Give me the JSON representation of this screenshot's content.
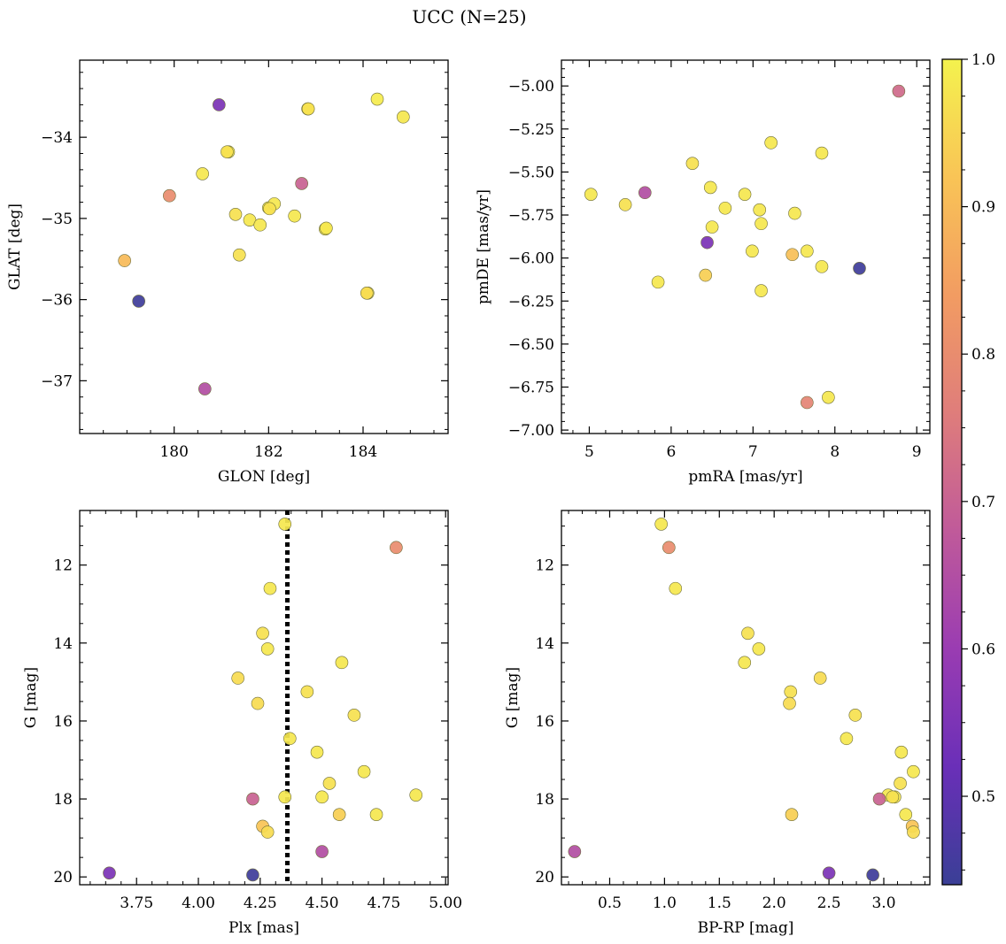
{
  "figure": {
    "title": "UCC (N=25)"
  },
  "colorbar": {
    "min": 0.44,
    "max": 1.0,
    "ticks": [
      0.5,
      0.6,
      0.7,
      0.8,
      0.9,
      1.0
    ],
    "tick_labels": [
      "0.5",
      "0.6",
      "0.7",
      "0.8",
      "0.9",
      "1.0"
    ],
    "colormap": "plasma",
    "stops": [
      "#3a3f96",
      "#6a2fb8",
      "#9a3cb2",
      "#c05a9a",
      "#df7d7b",
      "#f29c62",
      "#f9c456",
      "#f4f24e"
    ]
  },
  "chart_data": [
    {
      "type": "scatter",
      "title": "",
      "xlabel": "GLON [deg]",
      "ylabel": "GLAT [deg]",
      "xlim": [
        178.0,
        185.8
      ],
      "ylim": [
        -37.65,
        -33.05
      ],
      "invert_y": false,
      "xticks": [
        180,
        182,
        184
      ],
      "xtick_labels": [
        "180",
        "182",
        "184"
      ],
      "yticks": [
        -34,
        -35,
        -36,
        -37
      ],
      "ytick_labels": [
        "−34",
        "−35",
        "−36",
        "−37"
      ],
      "points": [
        {
          "x": 180.95,
          "y": -33.6,
          "c": 0.55
        },
        {
          "x": 184.3,
          "y": -33.53,
          "c": 0.99
        },
        {
          "x": 184.85,
          "y": -33.75,
          "c": 0.98
        },
        {
          "x": 182.83,
          "y": -33.65,
          "c": 0.99
        },
        {
          "x": 181.15,
          "y": -34.18,
          "c": 0.99
        },
        {
          "x": 180.6,
          "y": -34.45,
          "c": 0.98
        },
        {
          "x": 179.9,
          "y": -34.72,
          "c": 0.8
        },
        {
          "x": 182.7,
          "y": -34.57,
          "c": 0.7
        },
        {
          "x": 181.3,
          "y": -34.95,
          "c": 0.97
        },
        {
          "x": 181.6,
          "y": -35.02,
          "c": 0.98
        },
        {
          "x": 181.82,
          "y": -35.08,
          "c": 0.98
        },
        {
          "x": 182.0,
          "y": -34.87,
          "c": 0.99
        },
        {
          "x": 182.12,
          "y": -34.82,
          "c": 0.98
        },
        {
          "x": 182.55,
          "y": -34.97,
          "c": 0.98
        },
        {
          "x": 183.2,
          "y": -35.13,
          "c": 0.99
        },
        {
          "x": 181.38,
          "y": -35.45,
          "c": 0.97
        },
        {
          "x": 178.95,
          "y": -35.52,
          "c": 0.9
        },
        {
          "x": 184.1,
          "y": -35.92,
          "c": 0.99
        },
        {
          "x": 179.25,
          "y": -36.02,
          "c": 0.45
        },
        {
          "x": 180.65,
          "y": -37.1,
          "c": 0.65
        },
        {
          "x": 183.22,
          "y": -35.12,
          "c": 0.98
        },
        {
          "x": 181.12,
          "y": -34.18,
          "c": 0.97
        },
        {
          "x": 182.02,
          "y": -34.88,
          "c": 0.97
        },
        {
          "x": 184.08,
          "y": -35.92,
          "c": 0.96
        },
        {
          "x": 182.84,
          "y": -33.65,
          "c": 0.97
        }
      ]
    },
    {
      "type": "scatter",
      "title": "",
      "xlabel": "pmRA [mas/yr]",
      "ylabel": "pmDE [mas/yr]",
      "xlim": [
        4.66,
        9.16
      ],
      "ylim": [
        -7.02,
        -4.85
      ],
      "invert_y": false,
      "xticks": [
        5,
        6,
        7,
        8,
        9
      ],
      "xtick_labels": [
        "5",
        "6",
        "7",
        "8",
        "9"
      ],
      "yticks": [
        -5.0,
        -5.25,
        -5.5,
        -5.75,
        -6.0,
        -6.25,
        -6.5,
        -6.75,
        -7.0
      ],
      "ytick_labels": [
        "−5.00",
        "−5.25",
        "−5.50",
        "−5.75",
        "−6.00",
        "−6.25",
        "−6.50",
        "−6.75",
        "−7.00"
      ],
      "points": [
        {
          "x": 8.78,
          "y": -5.03,
          "c": 0.72
        },
        {
          "x": 7.22,
          "y": -5.33,
          "c": 0.98
        },
        {
          "x": 7.84,
          "y": -5.39,
          "c": 0.98
        },
        {
          "x": 6.26,
          "y": -5.45,
          "c": 0.97
        },
        {
          "x": 6.48,
          "y": -5.59,
          "c": 0.98
        },
        {
          "x": 5.02,
          "y": -5.63,
          "c": 0.98
        },
        {
          "x": 5.44,
          "y": -5.69,
          "c": 0.97
        },
        {
          "x": 5.68,
          "y": -5.62,
          "c": 0.65
        },
        {
          "x": 6.9,
          "y": -5.63,
          "c": 0.98
        },
        {
          "x": 6.66,
          "y": -5.71,
          "c": 0.98
        },
        {
          "x": 7.08,
          "y": -5.72,
          "c": 0.98
        },
        {
          "x": 7.51,
          "y": -5.74,
          "c": 0.98
        },
        {
          "x": 6.5,
          "y": -5.82,
          "c": 0.98
        },
        {
          "x": 7.1,
          "y": -5.8,
          "c": 0.98
        },
        {
          "x": 6.44,
          "y": -5.91,
          "c": 0.55
        },
        {
          "x": 6.99,
          "y": -5.96,
          "c": 0.98
        },
        {
          "x": 7.48,
          "y": -5.98,
          "c": 0.91
        },
        {
          "x": 7.66,
          "y": -5.96,
          "c": 0.98
        },
        {
          "x": 7.84,
          "y": -6.05,
          "c": 0.98
        },
        {
          "x": 8.3,
          "y": -6.06,
          "c": 0.45
        },
        {
          "x": 6.42,
          "y": -6.1,
          "c": 0.94
        },
        {
          "x": 5.84,
          "y": -6.14,
          "c": 0.98
        },
        {
          "x": 7.1,
          "y": -6.19,
          "c": 0.98
        },
        {
          "x": 7.66,
          "y": -6.84,
          "c": 0.78
        },
        {
          "x": 7.92,
          "y": -6.81,
          "c": 0.98
        }
      ]
    },
    {
      "type": "scatter",
      "title": "",
      "xlabel": "Plx [mas]",
      "ylabel": "G [mag]",
      "xlim": [
        3.52,
        5.01
      ],
      "ylim": [
        20.2,
        10.6
      ],
      "invert_y": true,
      "xticks": [
        3.75,
        4.0,
        4.25,
        4.5,
        4.75,
        5.0
      ],
      "xtick_labels": [
        "3.75",
        "4.00",
        "4.25",
        "4.50",
        "4.75",
        "5.00"
      ],
      "yticks": [
        12,
        14,
        16,
        18,
        20
      ],
      "ytick_labels": [
        "12",
        "14",
        "16",
        "18",
        "20"
      ],
      "vline": {
        "x": 4.36,
        "style": "dotted"
      },
      "points": [
        {
          "x": 4.35,
          "y": 10.95,
          "c": 0.98
        },
        {
          "x": 4.8,
          "y": 11.55,
          "c": 0.8
        },
        {
          "x": 4.29,
          "y": 12.6,
          "c": 0.98
        },
        {
          "x": 4.26,
          "y": 13.75,
          "c": 0.97
        },
        {
          "x": 4.28,
          "y": 14.15,
          "c": 0.98
        },
        {
          "x": 4.58,
          "y": 14.5,
          "c": 0.98
        },
        {
          "x": 4.16,
          "y": 14.9,
          "c": 0.96
        },
        {
          "x": 4.44,
          "y": 15.25,
          "c": 0.97
        },
        {
          "x": 4.24,
          "y": 15.55,
          "c": 0.96
        },
        {
          "x": 4.63,
          "y": 15.85,
          "c": 0.97
        },
        {
          "x": 4.37,
          "y": 16.45,
          "c": 0.98
        },
        {
          "x": 4.48,
          "y": 16.8,
          "c": 0.98
        },
        {
          "x": 4.67,
          "y": 17.3,
          "c": 0.98
        },
        {
          "x": 4.53,
          "y": 17.6,
          "c": 0.97
        },
        {
          "x": 4.88,
          "y": 17.9,
          "c": 0.98
        },
        {
          "x": 4.35,
          "y": 17.95,
          "c": 0.98
        },
        {
          "x": 4.5,
          "y": 17.95,
          "c": 0.98
        },
        {
          "x": 4.22,
          "y": 18.0,
          "c": 0.7
        },
        {
          "x": 4.57,
          "y": 18.4,
          "c": 0.94
        },
        {
          "x": 4.72,
          "y": 18.4,
          "c": 0.98
        },
        {
          "x": 4.26,
          "y": 18.7,
          "c": 0.92
        },
        {
          "x": 4.28,
          "y": 18.85,
          "c": 0.96
        },
        {
          "x": 4.5,
          "y": 19.35,
          "c": 0.65
        },
        {
          "x": 3.64,
          "y": 19.9,
          "c": 0.55
        },
        {
          "x": 4.22,
          "y": 19.95,
          "c": 0.45
        }
      ]
    },
    {
      "type": "scatter",
      "title": "",
      "xlabel": "BP-RP [mag]",
      "ylabel": "G [mag]",
      "xlim": [
        0.06,
        3.42
      ],
      "ylim": [
        20.2,
        10.6
      ],
      "invert_y": true,
      "xticks": [
        0.5,
        1.0,
        1.5,
        2.0,
        2.5,
        3.0
      ],
      "xtick_labels": [
        "0.5",
        "1.0",
        "1.5",
        "2.0",
        "2.5",
        "3.0"
      ],
      "yticks": [
        12,
        14,
        16,
        18,
        20
      ],
      "ytick_labels": [
        "12",
        "14",
        "16",
        "18",
        "20"
      ],
      "points": [
        {
          "x": 0.97,
          "y": 10.95,
          "c": 0.98
        },
        {
          "x": 1.04,
          "y": 11.55,
          "c": 0.8
        },
        {
          "x": 1.1,
          "y": 12.6,
          "c": 0.98
        },
        {
          "x": 1.76,
          "y": 13.75,
          "c": 0.97
        },
        {
          "x": 1.86,
          "y": 14.15,
          "c": 0.98
        },
        {
          "x": 1.73,
          "y": 14.5,
          "c": 0.98
        },
        {
          "x": 2.42,
          "y": 14.9,
          "c": 0.96
        },
        {
          "x": 2.15,
          "y": 15.25,
          "c": 0.97
        },
        {
          "x": 2.14,
          "y": 15.55,
          "c": 0.96
        },
        {
          "x": 2.74,
          "y": 15.85,
          "c": 0.97
        },
        {
          "x": 2.66,
          "y": 16.45,
          "c": 0.98
        },
        {
          "x": 3.16,
          "y": 16.8,
          "c": 0.98
        },
        {
          "x": 3.27,
          "y": 17.3,
          "c": 0.98
        },
        {
          "x": 3.15,
          "y": 17.6,
          "c": 0.97
        },
        {
          "x": 3.04,
          "y": 17.9,
          "c": 0.98
        },
        {
          "x": 3.1,
          "y": 17.95,
          "c": 0.98
        },
        {
          "x": 2.96,
          "y": 18.0,
          "c": 0.7
        },
        {
          "x": 3.2,
          "y": 18.4,
          "c": 0.98
        },
        {
          "x": 2.16,
          "y": 18.4,
          "c": 0.94
        },
        {
          "x": 3.26,
          "y": 18.7,
          "c": 0.92
        },
        {
          "x": 3.27,
          "y": 18.85,
          "c": 0.96
        },
        {
          "x": 0.18,
          "y": 19.35,
          "c": 0.65
        },
        {
          "x": 2.5,
          "y": 19.9,
          "c": 0.55
        },
        {
          "x": 2.9,
          "y": 19.95,
          "c": 0.45
        },
        {
          "x": 3.08,
          "y": 17.95,
          "c": 0.97
        }
      ]
    }
  ]
}
